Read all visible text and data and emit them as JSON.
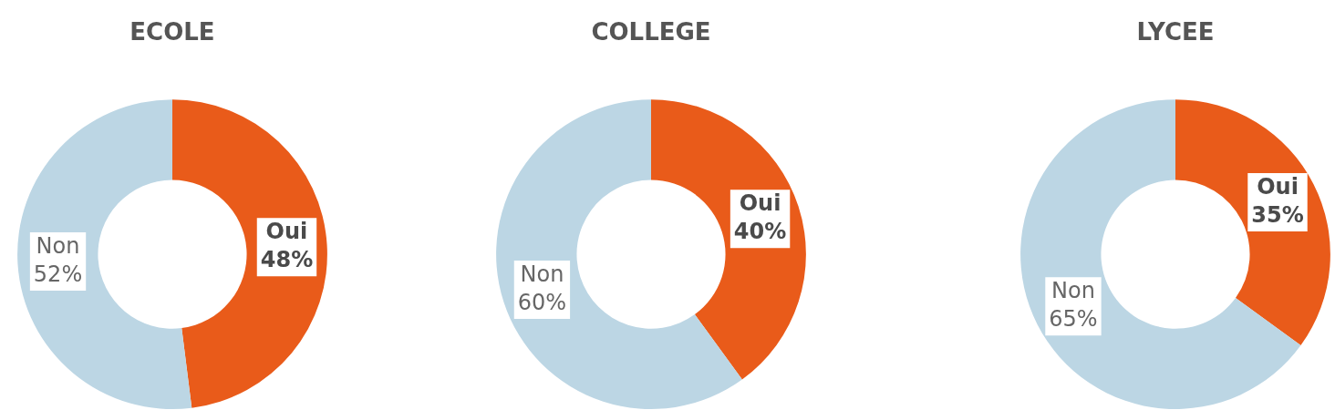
{
  "chart_data": [
    {
      "type": "donut",
      "title": "ECOLE",
      "categories": [
        "Oui",
        "Non"
      ],
      "values": [
        48,
        52
      ],
      "colors": [
        "#e95b1a",
        "#bcd6e4"
      ],
      "value_labels": [
        "48%",
        "52%"
      ],
      "legend": false
    },
    {
      "type": "donut",
      "title": "COLLEGE",
      "categories": [
        "Oui",
        "Non"
      ],
      "values": [
        40,
        60
      ],
      "colors": [
        "#e95b1a",
        "#bcd6e4"
      ],
      "value_labels": [
        "40%",
        "60%"
      ],
      "legend": false
    },
    {
      "type": "donut",
      "title": "LYCEE",
      "categories": [
        "Oui",
        "Non"
      ],
      "values": [
        35,
        65
      ],
      "colors": [
        "#e95b1a",
        "#bcd6e4"
      ],
      "value_labels": [
        "35%",
        "65%"
      ],
      "legend": false
    }
  ]
}
